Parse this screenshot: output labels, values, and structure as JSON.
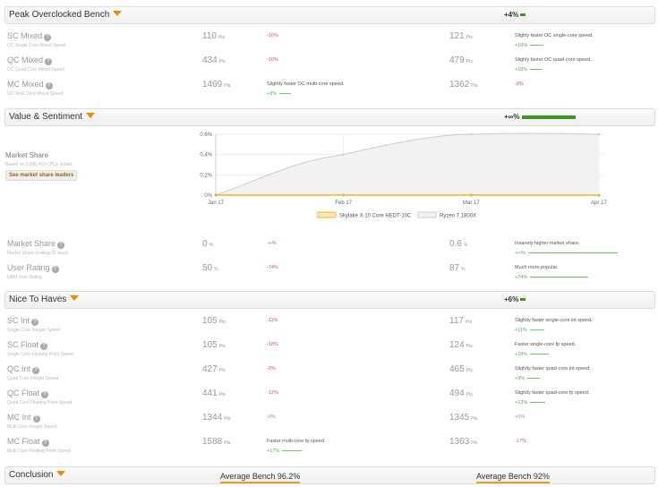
{
  "colors": {
    "accent": "#f08c00",
    "positive": "#3a9a1a",
    "negative": "#c55"
  },
  "sections": [
    {
      "title": "Peak Overclocked Bench",
      "summary": "+4%",
      "rows": [
        {
          "label": "SC Mixed",
          "sub": "OC Single Core Mixed Speed",
          "a": {
            "value": "110",
            "unit": "Pts",
            "diff": "-10%"
          },
          "b": {
            "value": "121",
            "unit": "Pts",
            "desc": "Slighly faster OC single-core speed.",
            "diff": "+10%"
          }
        },
        {
          "label": "QC Mixed",
          "sub": "OC Quad Core Mixed Speed",
          "a": {
            "value": "434",
            "unit": "Pts",
            "diff": "-10%"
          },
          "b": {
            "value": "479",
            "unit": "Pts",
            "desc": "Slighly faster OC quad-core speed.",
            "diff": "+10%"
          }
        },
        {
          "label": "MC Mixed",
          "sub": "OC Multi Core Mixed Speed",
          "a": {
            "value": "1469",
            "unit": "Pts",
            "desc": "Slightly faster OC multi-core speed.",
            "diff": "+8%"
          },
          "b": {
            "value": "1362",
            "unit": "Pts",
            "diff": "-8%"
          }
        }
      ]
    },
    {
      "title": "Value & Sentiment",
      "summary": "+∞%",
      "market": {
        "title": "Market Share",
        "sub": "Based on 3,668,453 CPUs tested.",
        "button": "See market share leaders"
      },
      "rows": [
        {
          "label": "Market Share",
          "sub": "Market Share (trailing 30 days)",
          "a": {
            "value": "0",
            "unit": "%",
            "diff": "-∞%"
          },
          "b": {
            "value": "0.6",
            "unit": "%",
            "desc": "Insanely higher market share.",
            "diff": "+∞%"
          }
        },
        {
          "label": "User Rating",
          "sub": "UBM User Rating",
          "a": {
            "value": "50",
            "unit": "%",
            "diff": "-74%"
          },
          "b": {
            "value": "87",
            "unit": "%",
            "desc": "Much more popular.",
            "diff": "+74%"
          }
        }
      ]
    },
    {
      "title": "Nice To Haves",
      "summary": "+6%",
      "rows": [
        {
          "label": "SC Int",
          "sub": "Single Core Integer Speed",
          "a": {
            "value": "105",
            "unit": "Pts",
            "diff": "-11%"
          },
          "b": {
            "value": "117",
            "unit": "Pts",
            "desc": "Slightly faster single-core int speed.",
            "diff": "+11%"
          }
        },
        {
          "label": "SC Float",
          "sub": "Single Core Floating Point Speed",
          "a": {
            "value": "105",
            "unit": "Pts",
            "diff": "-18%"
          },
          "b": {
            "value": "124",
            "unit": "Pts",
            "desc": "Faster single-core fp speed.",
            "diff": "+18%"
          }
        },
        {
          "label": "QC Int",
          "sub": "Quad Core Integer Speed",
          "a": {
            "value": "427",
            "unit": "Pts",
            "diff": "-9%"
          },
          "b": {
            "value": "465",
            "unit": "Pts",
            "desc": "Slightly faster quad-core int speed.",
            "diff": "+9%"
          }
        },
        {
          "label": "QC Float",
          "sub": "Quad Core Floating Point Speed",
          "a": {
            "value": "441",
            "unit": "Pts",
            "diff": "-12%"
          },
          "b": {
            "value": "494",
            "unit": "Pts",
            "desc": "Slightly faster quad-core fp speed.",
            "diff": "+12%"
          }
        },
        {
          "label": "MC Int",
          "sub": "Multi Core Integer Speed",
          "a": {
            "value": "1344",
            "unit": "Pts",
            "diff": "-0%"
          },
          "b": {
            "value": "1345",
            "unit": "Pts",
            "diff": "+0%"
          }
        },
        {
          "label": "MC Float",
          "sub": "Multi Core Floating Point Speed",
          "a": {
            "value": "1588",
            "unit": "Pts",
            "desc": "Faster multi-core fp speed.",
            "diff": "+17%"
          },
          "b": {
            "value": "1363",
            "unit": "Pts",
            "diff": "-17%"
          }
        }
      ]
    },
    {
      "title": "Conclusion",
      "left": "Average Bench 96.2%",
      "right": "Average Bench 92%"
    }
  ],
  "chart_data": {
    "type": "area",
    "categories": [
      "Jan 17",
      "Feb 17",
      "Mar 17",
      "Apr 17"
    ],
    "yticks": [
      "0%",
      "0.2%",
      "0.4%",
      "0.6%"
    ],
    "ylim": [
      0,
      0.6
    ],
    "grid": true,
    "legend": "bottom",
    "series": [
      {
        "name": "Skylake X 10 Core HEDT-10C",
        "values": [
          0,
          0,
          0,
          0
        ],
        "color": "#f5b031"
      },
      {
        "name": "Ryzen 7 1800X",
        "values": [
          0,
          0.4,
          0.6,
          0.6
        ],
        "color": "#cccccc"
      }
    ]
  }
}
